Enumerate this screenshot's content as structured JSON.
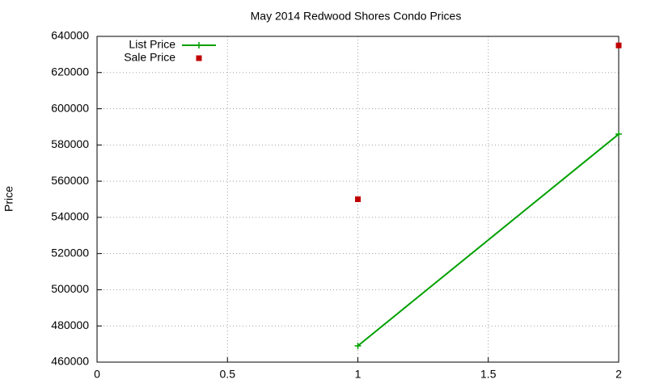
{
  "chart_data": {
    "type": "line",
    "title": "May 2014 Redwood Shores Condo Prices",
    "y_label": "Price",
    "x": [
      1,
      2
    ],
    "series": [
      {
        "name": "List Price",
        "color": "#00a000",
        "style": "linespoints",
        "marker": "plus",
        "values": [
          469000,
          586000
        ]
      },
      {
        "name": "Sale Price",
        "color": "#c00000",
        "style": "points",
        "marker": "square",
        "values": [
          550000,
          635000
        ]
      }
    ],
    "xlim": [
      0,
      2
    ],
    "xticks": [
      0,
      0.5,
      1,
      1.5,
      2
    ],
    "ylim": [
      460000,
      640000
    ],
    "yticks": [
      460000,
      480000,
      500000,
      520000,
      540000,
      560000,
      580000,
      600000,
      620000,
      640000
    ],
    "grid": true,
    "legend": "top-left"
  }
}
